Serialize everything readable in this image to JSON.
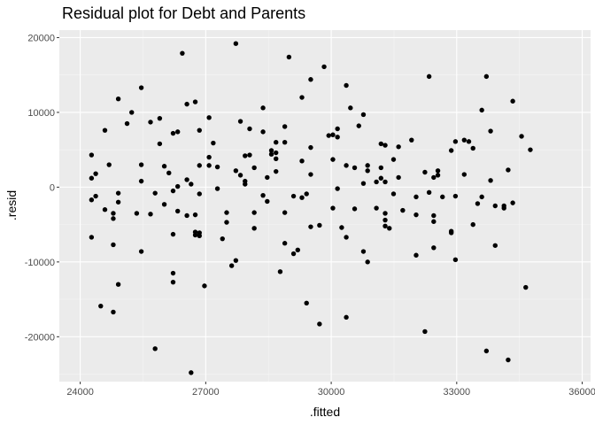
{
  "chart_data": {
    "type": "scatter",
    "title": "Residual plot for Debt and Parents",
    "xlabel": ".fitted",
    "ylabel": ".resid",
    "xlim": [
      23500,
      36200
    ],
    "ylim": [
      -26000,
      21000
    ],
    "xticks": [
      24000,
      27000,
      30000,
      33000,
      36000
    ],
    "yticks": [
      -20000,
      -10000,
      0,
      10000,
      20000
    ],
    "xtick_labels": [
      "24000",
      "27000",
      "30000",
      "33000",
      "36000"
    ],
    "ytick_labels": [
      "-20000",
      "-10000",
      "0",
      "10000",
      "20000"
    ],
    "grid": true,
    "colors": {
      "panel": "#ebebeb",
      "grid_major": "#ffffff",
      "grid_minor": "#f5f5f5",
      "point": "#000000"
    },
    "points": [
      {
        "x": 24270,
        "y": 4300
      },
      {
        "x": 24270,
        "y": 1200
      },
      {
        "x": 24270,
        "y": -1700
      },
      {
        "x": 24270,
        "y": -6700
      },
      {
        "x": 24370,
        "y": 1800
      },
      {
        "x": 24370,
        "y": -1200
      },
      {
        "x": 24490,
        "y": -15900
      },
      {
        "x": 24590,
        "y": 7600
      },
      {
        "x": 24590,
        "y": -3000
      },
      {
        "x": 24690,
        "y": 3000
      },
      {
        "x": 24790,
        "y": -3500
      },
      {
        "x": 24790,
        "y": -4200
      },
      {
        "x": 24790,
        "y": -7700
      },
      {
        "x": 24790,
        "y": -16700
      },
      {
        "x": 24910,
        "y": 11800
      },
      {
        "x": 24910,
        "y": -800
      },
      {
        "x": 24910,
        "y": -2000
      },
      {
        "x": 24910,
        "y": -13000
      },
      {
        "x": 25120,
        "y": 8500
      },
      {
        "x": 25230,
        "y": 10000
      },
      {
        "x": 25350,
        "y": -3500
      },
      {
        "x": 25460,
        "y": 13300
      },
      {
        "x": 25460,
        "y": 3000
      },
      {
        "x": 25460,
        "y": 800
      },
      {
        "x": 25460,
        "y": -8600
      },
      {
        "x": 25680,
        "y": 8700
      },
      {
        "x": 25680,
        "y": -3600
      },
      {
        "x": 25790,
        "y": -800
      },
      {
        "x": 25790,
        "y": -21600
      },
      {
        "x": 25900,
        "y": 9200
      },
      {
        "x": 25900,
        "y": 5800
      },
      {
        "x": 26010,
        "y": 2800
      },
      {
        "x": 26010,
        "y": -2300
      },
      {
        "x": 26120,
        "y": 1900
      },
      {
        "x": 26220,
        "y": 7200
      },
      {
        "x": 26220,
        "y": -500
      },
      {
        "x": 26220,
        "y": -6300
      },
      {
        "x": 26220,
        "y": -11500
      },
      {
        "x": 26220,
        "y": -12700
      },
      {
        "x": 26330,
        "y": 7400
      },
      {
        "x": 26330,
        "y": 100
      },
      {
        "x": 26330,
        "y": -3200
      },
      {
        "x": 26440,
        "y": 17900
      },
      {
        "x": 26550,
        "y": 11100
      },
      {
        "x": 26550,
        "y": 1000
      },
      {
        "x": 26550,
        "y": -3800
      },
      {
        "x": 26650,
        "y": -24800
      },
      {
        "x": 26750,
        "y": 11400
      },
      {
        "x": 26650,
        "y": 400
      },
      {
        "x": 26750,
        "y": -3700
      },
      {
        "x": 26750,
        "y": -6000
      },
      {
        "x": 26750,
        "y": -6400
      },
      {
        "x": 26850,
        "y": 7600
      },
      {
        "x": 26850,
        "y": 2900
      },
      {
        "x": 26850,
        "y": -900
      },
      {
        "x": 26850,
        "y": -6100
      },
      {
        "x": 26850,
        "y": -6500
      },
      {
        "x": 26970,
        "y": -13200
      },
      {
        "x": 27080,
        "y": 9300
      },
      {
        "x": 27080,
        "y": 4000
      },
      {
        "x": 27080,
        "y": 2900
      },
      {
        "x": 27180,
        "y": 5900
      },
      {
        "x": 27280,
        "y": -200
      },
      {
        "x": 27280,
        "y": 2700
      },
      {
        "x": 27400,
        "y": -6900
      },
      {
        "x": 27500,
        "y": -3400
      },
      {
        "x": 27500,
        "y": -4700
      },
      {
        "x": 27620,
        "y": -10500
      },
      {
        "x": 27720,
        "y": 19200
      },
      {
        "x": 27720,
        "y": 2200
      },
      {
        "x": 27720,
        "y": -9800
      },
      {
        "x": 27830,
        "y": 8800
      },
      {
        "x": 27830,
        "y": 1600
      },
      {
        "x": 27940,
        "y": 4200
      },
      {
        "x": 27940,
        "y": 800
      },
      {
        "x": 27940,
        "y": 400
      },
      {
        "x": 28050,
        "y": 7800
      },
      {
        "x": 28050,
        "y": 4300
      },
      {
        "x": 28160,
        "y": 2600
      },
      {
        "x": 28160,
        "y": -3400
      },
      {
        "x": 28160,
        "y": -5500
      },
      {
        "x": 28370,
        "y": 10600
      },
      {
        "x": 28370,
        "y": 7400
      },
      {
        "x": 28370,
        "y": -1100
      },
      {
        "x": 28470,
        "y": 1300
      },
      {
        "x": 28470,
        "y": -1900
      },
      {
        "x": 28570,
        "y": 4900
      },
      {
        "x": 28570,
        "y": 4400
      },
      {
        "x": 28680,
        "y": 6000
      },
      {
        "x": 28680,
        "y": 4600
      },
      {
        "x": 28680,
        "y": 3800
      },
      {
        "x": 28680,
        "y": 2100
      },
      {
        "x": 28780,
        "y": -11300
      },
      {
        "x": 28890,
        "y": 8100
      },
      {
        "x": 28890,
        "y": 6000
      },
      {
        "x": 28890,
        "y": -3400
      },
      {
        "x": 28890,
        "y": -7500
      },
      {
        "x": 28990,
        "y": 17400
      },
      {
        "x": 29100,
        "y": -1200
      },
      {
        "x": 29100,
        "y": -8900
      },
      {
        "x": 29200,
        "y": -8400
      },
      {
        "x": 29300,
        "y": 12000
      },
      {
        "x": 29300,
        "y": 3500
      },
      {
        "x": 29300,
        "y": -1400
      },
      {
        "x": 29410,
        "y": -15500
      },
      {
        "x": 29410,
        "y": -900
      },
      {
        "x": 29510,
        "y": 14400
      },
      {
        "x": 29510,
        "y": 5300
      },
      {
        "x": 29510,
        "y": 1700
      },
      {
        "x": 29510,
        "y": -5300
      },
      {
        "x": 29720,
        "y": -18300
      },
      {
        "x": 29720,
        "y": -5100
      },
      {
        "x": 29830,
        "y": 16100
      },
      {
        "x": 29940,
        "y": 6900
      },
      {
        "x": 30040,
        "y": 7000
      },
      {
        "x": 30040,
        "y": 3700
      },
      {
        "x": 30040,
        "y": -2800
      },
      {
        "x": 30150,
        "y": 7800
      },
      {
        "x": 30150,
        "y": 6700
      },
      {
        "x": 30150,
        "y": -200
      },
      {
        "x": 30250,
        "y": -5400
      },
      {
        "x": 30360,
        "y": 13600
      },
      {
        "x": 30360,
        "y": 2900
      },
      {
        "x": 30360,
        "y": -6700
      },
      {
        "x": 30360,
        "y": -17400
      },
      {
        "x": 30460,
        "y": 10600
      },
      {
        "x": 30560,
        "y": 2600
      },
      {
        "x": 30560,
        "y": -2900
      },
      {
        "x": 30660,
        "y": 8200
      },
      {
        "x": 30770,
        "y": 9700
      },
      {
        "x": 30770,
        "y": 500
      },
      {
        "x": 30770,
        "y": -8600
      },
      {
        "x": 30870,
        "y": 2900
      },
      {
        "x": 30870,
        "y": 2200
      },
      {
        "x": 30870,
        "y": -10000
      },
      {
        "x": 31080,
        "y": 700
      },
      {
        "x": 31080,
        "y": -2800
      },
      {
        "x": 31190,
        "y": 5800
      },
      {
        "x": 31190,
        "y": 2600
      },
      {
        "x": 31190,
        "y": 1200
      },
      {
        "x": 31290,
        "y": 5600
      },
      {
        "x": 31290,
        "y": 700
      },
      {
        "x": 31290,
        "y": -3500
      },
      {
        "x": 31290,
        "y": -4400
      },
      {
        "x": 31290,
        "y": -5200
      },
      {
        "x": 31390,
        "y": -5500
      },
      {
        "x": 31490,
        "y": 3700
      },
      {
        "x": 31490,
        "y": -900
      },
      {
        "x": 31610,
        "y": 5400
      },
      {
        "x": 31610,
        "y": 1300
      },
      {
        "x": 31710,
        "y": -3100
      },
      {
        "x": 31920,
        "y": 6300
      },
      {
        "x": 32030,
        "y": -1300
      },
      {
        "x": 32030,
        "y": -3700
      },
      {
        "x": 32030,
        "y": -9100
      },
      {
        "x": 32240,
        "y": 2000
      },
      {
        "x": 32240,
        "y": -19300
      },
      {
        "x": 32340,
        "y": 14800
      },
      {
        "x": 32340,
        "y": -700
      },
      {
        "x": 32450,
        "y": 1300
      },
      {
        "x": 32450,
        "y": -3800
      },
      {
        "x": 32450,
        "y": -4600
      },
      {
        "x": 32450,
        "y": -8100
      },
      {
        "x": 32550,
        "y": 2200
      },
      {
        "x": 32550,
        "y": 1600
      },
      {
        "x": 32660,
        "y": -1300
      },
      {
        "x": 32870,
        "y": 4900
      },
      {
        "x": 32870,
        "y": -5900
      },
      {
        "x": 32870,
        "y": -6100
      },
      {
        "x": 32970,
        "y": 6100
      },
      {
        "x": 32970,
        "y": -1200
      },
      {
        "x": 32970,
        "y": -9700
      },
      {
        "x": 33180,
        "y": 6300
      },
      {
        "x": 33180,
        "y": 1700
      },
      {
        "x": 33290,
        "y": 6100
      },
      {
        "x": 33390,
        "y": 5200
      },
      {
        "x": 33390,
        "y": -5000
      },
      {
        "x": 33500,
        "y": -2200
      },
      {
        "x": 33600,
        "y": 10300
      },
      {
        "x": 33600,
        "y": -1300
      },
      {
        "x": 33710,
        "y": 14800
      },
      {
        "x": 33710,
        "y": -21900
      },
      {
        "x": 33810,
        "y": 7500
      },
      {
        "x": 33810,
        "y": 900
      },
      {
        "x": 33920,
        "y": -2500
      },
      {
        "x": 33920,
        "y": -7800
      },
      {
        "x": 34130,
        "y": -2500
      },
      {
        "x": 34130,
        "y": -2800
      },
      {
        "x": 34230,
        "y": 2300
      },
      {
        "x": 34230,
        "y": -23100
      },
      {
        "x": 34340,
        "y": 11500
      },
      {
        "x": 34340,
        "y": -2100
      },
      {
        "x": 34550,
        "y": 6800
      },
      {
        "x": 34650,
        "y": -13400
      },
      {
        "x": 34760,
        "y": 5000
      }
    ]
  }
}
